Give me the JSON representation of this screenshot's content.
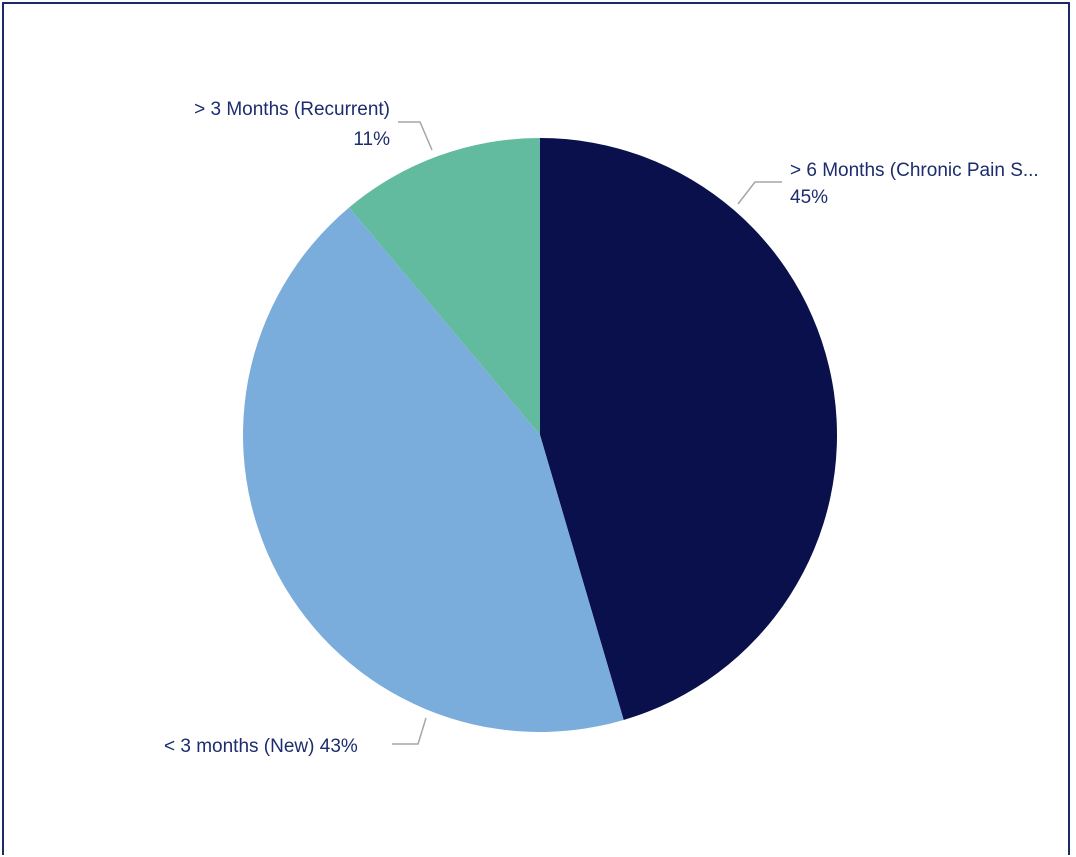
{
  "chart_data": {
    "type": "pie",
    "start_angle_deg": 0,
    "direction": "clockwise",
    "slices": [
      {
        "label_line1": "> 6 Months (Chronic Pain S...",
        "label_line2": "45%",
        "value": 45,
        "color": "#0a104b"
      },
      {
        "label_line1": "< 3 months (New) 43%",
        "label_line2": "",
        "value": 43,
        "color": "#7aaddc"
      },
      {
        "label_line1": "> 3 Months (Recurrent)",
        "label_line2": "11%",
        "value": 11,
        "color": "#62bb9f"
      }
    ]
  },
  "colors": {
    "border": "#1b2a6b",
    "label_text": "#1c2c6e",
    "leader_line": "#a6a6a6"
  }
}
